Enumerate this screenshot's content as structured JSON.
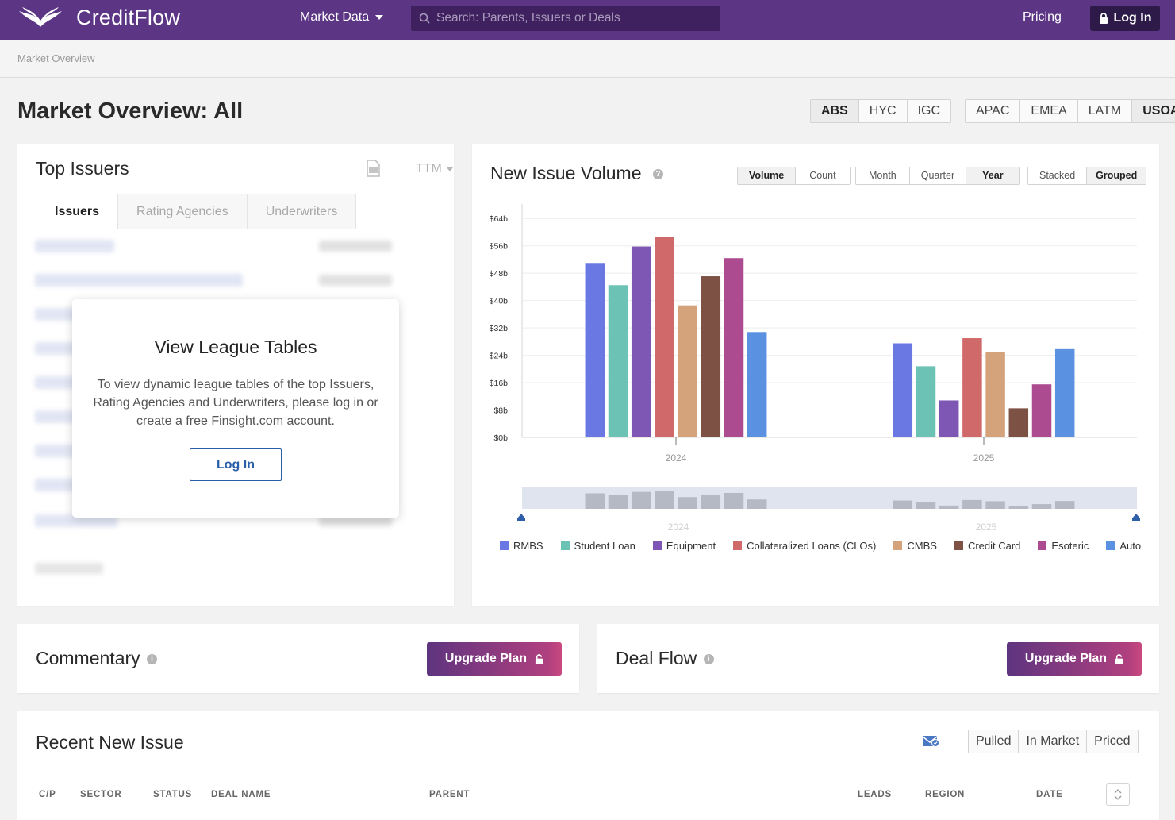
{
  "nav": {
    "brand": "CreditFlow",
    "menu": "Market Data",
    "search_placeholder": "Search: Parents, Issuers or Deals",
    "pricing": "Pricing",
    "login": "Log In"
  },
  "breadcrumb": "Market Overview",
  "page_title": "Market Overview: All",
  "asset_tabs": [
    "ABS",
    "HYC",
    "IGC"
  ],
  "region_tabs": [
    "APAC",
    "EMEA",
    "LATM",
    "USOA"
  ],
  "top_issuers": {
    "title": "Top Issuers",
    "period": "TTM",
    "tabs": [
      "Issuers",
      "Rating Agencies",
      "Underwriters"
    ],
    "modal": {
      "title": "View League Tables",
      "body": "To view dynamic league tables of the top Issuers, Rating Agencies and Underwriters, please log in or create a free Finsight.com account.",
      "button": "Log In"
    }
  },
  "volume": {
    "title": "New Issue Volume",
    "metric_toggle": [
      "Volume",
      "Count"
    ],
    "period_toggle": [
      "Month",
      "Quarter",
      "Year"
    ],
    "mode_toggle": [
      "Stacked",
      "Grouped"
    ]
  },
  "chart_data": {
    "type": "bar",
    "title": "New Issue Volume",
    "categories": [
      "2024",
      "2025"
    ],
    "y_ticks": [
      "$0b",
      "$8b",
      "$16b",
      "$24b",
      "$32b",
      "$40b",
      "$48b",
      "$56b",
      "$64b"
    ],
    "ylim": [
      0,
      68
    ],
    "series": [
      {
        "name": "RMBS",
        "color": "#6a78e3",
        "values": [
          51,
          27.5
        ]
      },
      {
        "name": "Student Loan",
        "color": "#6cc3b5",
        "values": [
          44.5,
          20.8
        ]
      },
      {
        "name": "Equipment",
        "color": "#7e57b5",
        "values": [
          55.8,
          10.8
        ]
      },
      {
        "name": "Collateralized Loans (CLOs)",
        "color": "#d06a6a",
        "values": [
          58.6,
          29
        ]
      },
      {
        "name": "CMBS",
        "color": "#d4a37c",
        "values": [
          38.6,
          25
        ]
      },
      {
        "name": "Credit Card",
        "color": "#7e5145",
        "values": [
          47.1,
          8.5
        ]
      },
      {
        "name": "Esoteric",
        "color": "#ad4b91",
        "values": [
          52.4,
          15.5
        ]
      },
      {
        "name": "Auto",
        "color": "#5b91e1",
        "values": [
          30.8,
          25.8
        ]
      }
    ]
  },
  "commentary": {
    "title": "Commentary",
    "button": "Upgrade Plan"
  },
  "deal_flow": {
    "title": "Deal Flow",
    "button": "Upgrade Plan"
  },
  "recent": {
    "title": "Recent New Issue",
    "filters": [
      "Pulled",
      "In Market",
      "Priced"
    ],
    "columns": [
      "C/P",
      "SECTOR",
      "STATUS",
      "DEAL NAME",
      "PARENT",
      "LEADS",
      "REGION",
      "DATE"
    ]
  },
  "colors": {
    "nav": "#5c3585",
    "accent": "#2a5fa8"
  }
}
